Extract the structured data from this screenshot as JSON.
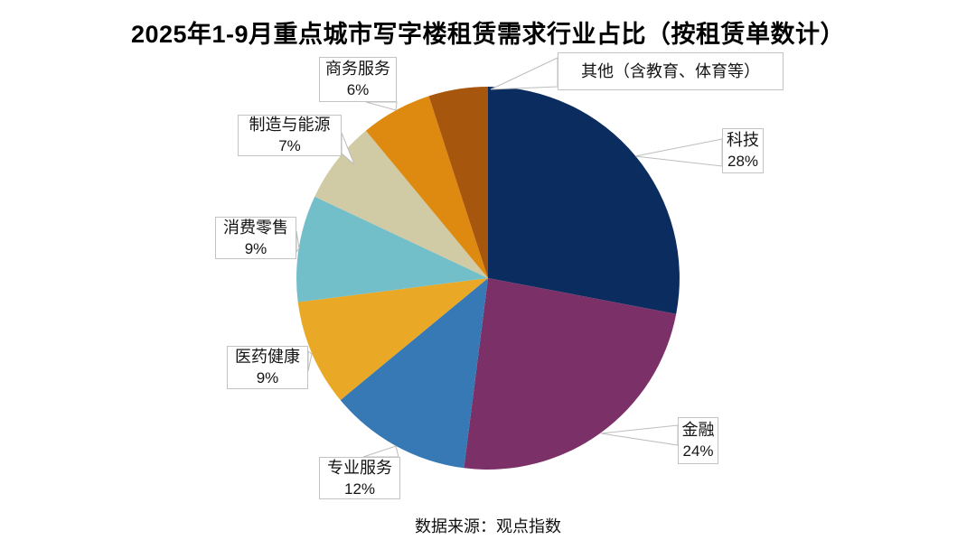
{
  "title": "2025年1-9月重点城市写字楼租赁需求行业占比（按租赁单数计）",
  "source": "数据来源：观点指数",
  "chart_data": {
    "type": "pie",
    "title": "2025年1-9月重点城市写字楼租赁需求行业占比（按租赁单数计）",
    "source": "数据来源：观点指数",
    "start_angle": "top",
    "direction": "clockwise",
    "legend_position": "callout-labels",
    "categories": [
      "科技",
      "金融",
      "专业服务",
      "医药健康",
      "消费零售",
      "制造与能源",
      "商务服务",
      "其他（含教育、体育等）"
    ],
    "values": [
      28,
      24,
      12,
      9,
      9,
      7,
      6,
      5
    ],
    "percent_labels": [
      "28%",
      "24%",
      "12%",
      "9%",
      "9%",
      "7%",
      "6%",
      ""
    ],
    "colors": [
      "#0b2c5f",
      "#7c3068",
      "#3679b5",
      "#eaa827",
      "#72bfca",
      "#d0caa5",
      "#de8a10",
      "#a7560e"
    ]
  }
}
